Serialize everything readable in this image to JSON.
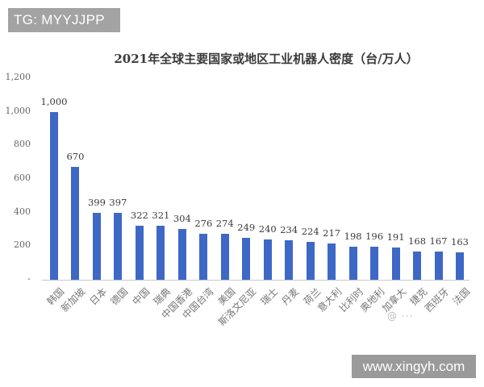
{
  "watermarks": {
    "top_left": "TG: MYYJJPP",
    "bottom_right": "www.xingyh.com",
    "faint_overlay": "@ ···"
  },
  "colors": {
    "bar": "#3e68c6",
    "badge_bg": "#a3a3a3",
    "text": "#3a3a3a"
  },
  "chart_data": {
    "type": "bar",
    "title": "2021年全球主要国家或地区工业机器人密度（台/万人）",
    "xlabel": "",
    "ylabel": "",
    "ylim": [
      0,
      1200
    ],
    "yticks": [
      "-",
      "200",
      "400",
      "600",
      "800",
      "1,000",
      "1,200"
    ],
    "grid": false,
    "legend": null,
    "categories": [
      "韩国",
      "新加坡",
      "日本",
      "德国",
      "中国",
      "瑞典",
      "中国香港",
      "中国台湾",
      "美国",
      "斯洛文尼亚",
      "瑞士",
      "丹麦",
      "荷兰",
      "意大利",
      "比利时",
      "奥地利",
      "加拿大",
      "捷克",
      "西班牙",
      "法国"
    ],
    "values": [
      1000,
      670,
      399,
      397,
      322,
      321,
      304,
      276,
      274,
      249,
      240,
      234,
      224,
      217,
      198,
      196,
      191,
      168,
      167,
      163
    ],
    "value_labels": [
      "1,000",
      "670",
      "399",
      "397",
      "322",
      "321",
      "304",
      "276",
      "274",
      "249",
      "240",
      "234",
      "224",
      "217",
      "198",
      "196",
      "191",
      "168",
      "167",
      "163"
    ]
  }
}
